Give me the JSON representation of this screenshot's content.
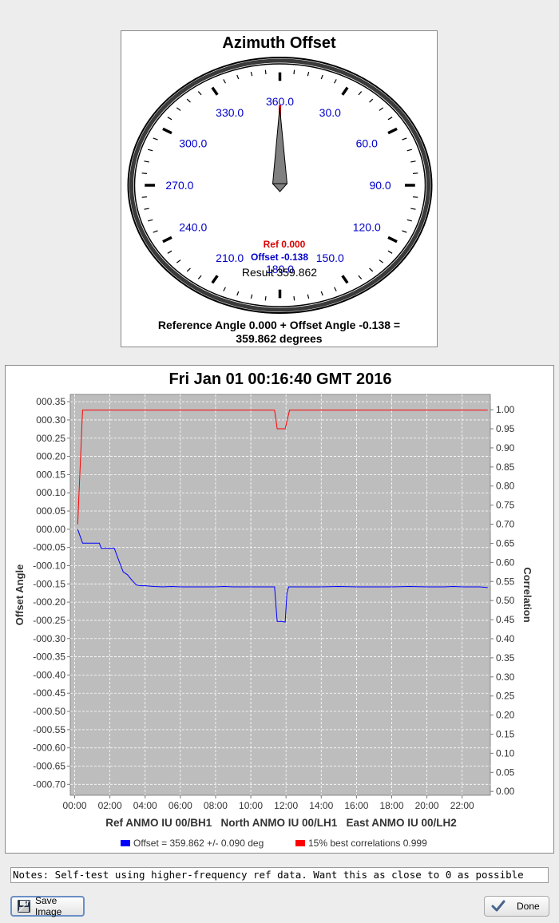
{
  "dial": {
    "title": "Azimuth Offset",
    "tick_labels": [
      "360.0",
      "30.0",
      "60.0",
      "90.0",
      "120.0",
      "150.0",
      "180.0",
      "210.0",
      "240.0",
      "270.0",
      "300.0",
      "330.0"
    ],
    "ref_label": "Ref 0.000",
    "offset_label": "Offset -0.138",
    "result_label": "Result 359.862",
    "caption_line1": "Reference Angle 0.000 + Offset Angle -0.138 =",
    "caption_line2": "359.862 degrees",
    "ref_angle": 0.0,
    "result_angle": 359.862,
    "colors": {
      "ref": "#dd0000",
      "offset": "#0000cc",
      "result": "#000000",
      "tick_label": "#0000cc"
    }
  },
  "chart_data": {
    "type": "line",
    "title": "Fri Jan 01 00:16:40 GMT 2016",
    "xlabel": "Ref ANMO IU 00/BH1   North ANMO IU 00/LH1   East ANMO IU 00/LH2",
    "ylabel": "Offset Angle",
    "y2label": "Correlation",
    "x_tick_labels": [
      "00:00",
      "02:00",
      "04:00",
      "06:00",
      "08:00",
      "10:00",
      "12:00",
      "14:00",
      "16:00",
      "18:00",
      "20:00",
      "22:00"
    ],
    "y_tick_labels": [
      "000.35",
      "000.30",
      "000.25",
      "000.20",
      "000.15",
      "000.10",
      "000.05",
      "000.00",
      "-000.05",
      "-000.10",
      "-000.15",
      "-000.20",
      "-000.25",
      "-000.30",
      "-000.35",
      "-000.40",
      "-000.45",
      "-000.50",
      "-000.55",
      "-000.60",
      "-000.65",
      "-000.70"
    ],
    "y2_tick_labels": [
      "1.00",
      "0.95",
      "0.90",
      "0.85",
      "0.80",
      "0.75",
      "0.70",
      "0.65",
      "0.60",
      "0.55",
      "0.50",
      "0.45",
      "0.40",
      "0.35",
      "0.30",
      "0.25",
      "0.20",
      "0.15",
      "0.10",
      "0.05",
      "0.00"
    ],
    "xlim": [
      -0.25,
      23.6
    ],
    "ylim": [
      -0.73,
      0.37
    ],
    "y2lim": [
      -0.01,
      1.04
    ],
    "grid": true,
    "legend_position": "bottom",
    "series": [
      {
        "name": "Offset = 359.862 +/- 0.090 deg",
        "axis": "left",
        "color": "#0000ff",
        "x": [
          0.17,
          0.45,
          0.75,
          1.0,
          1.4,
          1.5,
          1.7,
          2.0,
          2.25,
          2.5,
          2.75,
          3.0,
          3.25,
          3.5,
          3.75,
          4.0,
          4.5,
          5.0,
          5.5,
          6.0,
          7.0,
          8.0,
          8.5,
          9.0,
          9.5,
          10.0,
          10.5,
          11.0,
          11.35,
          11.5,
          11.75,
          11.95,
          12.05,
          12.15,
          12.5,
          13.0,
          14.0,
          15.0,
          16.0,
          17.0,
          18.0,
          19.0,
          20.0,
          21.0,
          21.5,
          22.0,
          23.0,
          23.45
        ],
        "y": [
          0.0,
          -0.038,
          -0.038,
          -0.038,
          -0.038,
          -0.052,
          -0.052,
          -0.052,
          -0.052,
          -0.085,
          -0.117,
          -0.125,
          -0.14,
          -0.153,
          -0.155,
          -0.155,
          -0.157,
          -0.158,
          -0.157,
          -0.158,
          -0.158,
          -0.158,
          -0.157,
          -0.158,
          -0.158,
          -0.158,
          -0.158,
          -0.158,
          -0.158,
          -0.253,
          -0.253,
          -0.255,
          -0.175,
          -0.158,
          -0.158,
          -0.158,
          -0.158,
          -0.157,
          -0.158,
          -0.158,
          -0.158,
          -0.157,
          -0.158,
          -0.158,
          -0.157,
          -0.158,
          -0.158,
          -0.16
        ]
      },
      {
        "name": "15% best correlations 0.999",
        "axis": "right",
        "color": "#ff0000",
        "x": [
          0.17,
          0.45,
          1.0,
          11.35,
          11.5,
          11.95,
          12.2,
          23.45
        ],
        "y": [
          0.7,
          0.999,
          0.999,
          0.999,
          0.95,
          0.95,
          0.999,
          0.999
        ]
      }
    ]
  },
  "notes": {
    "value": "Notes: Self-test using higher-frequency ref data. Want this as close to 0 as possible"
  },
  "buttons": {
    "save_label": "Save Image",
    "done_label": "Done"
  },
  "icons": {
    "save": "floppy-disk-icon",
    "done": "checkmark-icon"
  }
}
